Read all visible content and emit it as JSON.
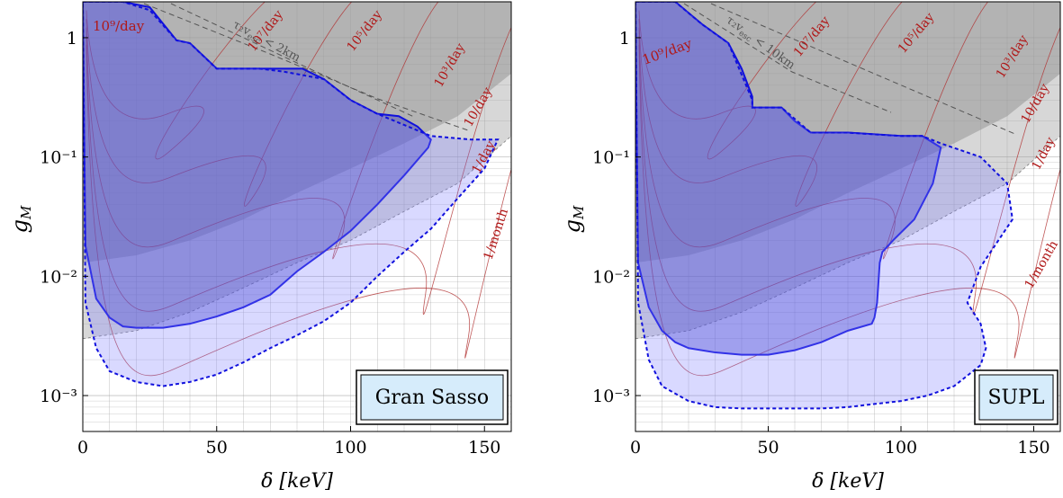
{
  "figure": {
    "panels": [
      {
        "region_label": "Gran Sasso",
        "xlabel": "δ [keV]",
        "ylabel": "g",
        "ylabel_sub": "M",
        "rate_labels": [
          "10⁹/day",
          "10⁷/day",
          "10⁵/day",
          "10³/day",
          "10/day",
          "1/day",
          "1/month"
        ],
        "escape_label_main": "τ₂v",
        "escape_label_sub": "esc",
        "escape_label_rest": " < 2km"
      },
      {
        "region_label": "SUPL",
        "xlabel": "δ [keV]",
        "ylabel": "g",
        "ylabel_sub": "M",
        "rate_labels": [
          "10⁹/day",
          "10⁷/day",
          "10⁵/day",
          "10³/day",
          "10/day",
          "1/day",
          "1/month"
        ],
        "escape_label_main": "τ₂v",
        "escape_label_sub": "esc",
        "escape_label_rest": " < 10km"
      }
    ]
  },
  "chart_data": [
    {
      "type": "area",
      "title": "Gran Sasso",
      "xlabel": "δ [keV]",
      "ylabel": "g_M",
      "xlim": [
        0,
        160
      ],
      "ylim": [
        0.0005,
        2
      ],
      "yscale": "log",
      "x_ticks": [
        0,
        50,
        100,
        150
      ],
      "x_tick_labels": [
        "0",
        "50",
        "100",
        "150"
      ],
      "y_ticks": [
        0.001,
        0.01,
        0.1,
        1
      ],
      "y_tick_labels": [
        "10⁻³",
        "10⁻²",
        "10⁻¹",
        "1"
      ],
      "grid": true,
      "colors": {
        "solid_region": "#2a2abf",
        "dashed_region": "#8080ff",
        "excluded_dark": "#888888",
        "excluded_light": "#bdbdbd",
        "rate_contours": "#b03030",
        "escape_line": "#555555"
      },
      "series": [
        {
          "style": "solid-blue",
          "x": [
            0,
            5,
            15,
            25,
            35,
            40,
            50,
            60,
            66,
            75,
            82,
            90,
            100,
            110,
            118,
            125,
            130,
            129,
            120,
            110,
            100,
            90,
            80,
            70,
            60,
            50,
            40,
            30,
            20,
            15,
            10,
            5,
            1
          ],
          "y": [
            2,
            2,
            2,
            1.8,
            0.95,
            0.9,
            0.55,
            0.55,
            0.55,
            0.55,
            0.55,
            0.45,
            0.3,
            0.23,
            0.22,
            0.18,
            0.14,
            0.12,
            0.07,
            0.04,
            0.024,
            0.016,
            0.011,
            0.007,
            0.0055,
            0.0046,
            0.004,
            0.0037,
            0.0037,
            0.0038,
            0.0045,
            0.0065,
            0.018
          ]
        },
        {
          "style": "dashed-blue",
          "x": [
            0,
            5,
            15,
            25,
            35,
            40,
            50,
            66,
            75,
            90,
            100,
            110,
            130,
            145,
            155,
            150,
            140,
            130,
            120,
            110,
            100,
            90,
            80,
            70,
            60,
            50,
            40,
            30,
            20,
            10,
            5,
            1
          ],
          "y": [
            2,
            2,
            2,
            1.7,
            0.95,
            0.9,
            0.55,
            0.55,
            0.52,
            0.45,
            0.3,
            0.23,
            0.15,
            0.14,
            0.14,
            0.08,
            0.045,
            0.025,
            0.016,
            0.01,
            0.006,
            0.0042,
            0.0032,
            0.0025,
            0.0019,
            0.0015,
            0.0013,
            0.0012,
            0.0013,
            0.0016,
            0.0025,
            0.006
          ]
        },
        {
          "style": "excluded-dark",
          "x": [
            0,
            20,
            40,
            60,
            80,
            100,
            120,
            140,
            160
          ],
          "y": [
            0.013,
            0.015,
            0.02,
            0.03,
            0.05,
            0.08,
            0.13,
            0.22,
            0.5
          ]
        },
        {
          "style": "excluded-light",
          "x": [
            0,
            20,
            40,
            60,
            80,
            100,
            120,
            140,
            160
          ],
          "y": [
            0.003,
            0.0035,
            0.005,
            0.008,
            0.013,
            0.02,
            0.035,
            0.06,
            0.15
          ]
        }
      ]
    },
    {
      "type": "area",
      "title": "SUPL",
      "xlabel": "δ [keV]",
      "ylabel": "g_M",
      "xlim": [
        0,
        160
      ],
      "ylim": [
        0.0005,
        2
      ],
      "yscale": "log",
      "x_ticks": [
        0,
        50,
        100,
        150
      ],
      "x_tick_labels": [
        "0",
        "50",
        "100",
        "150"
      ],
      "y_ticks": [
        0.001,
        0.01,
        0.1,
        1
      ],
      "y_tick_labels": [
        "10⁻³",
        "10⁻²",
        "10⁻¹",
        "1"
      ],
      "grid": true,
      "colors": {
        "solid_region": "#2a2abf",
        "dashed_region": "#8080ff",
        "excluded_dark": "#888888",
        "excluded_light": "#bdbdbd",
        "rate_contours": "#b03030",
        "escape_line": "#555555"
      },
      "series": [
        {
          "style": "solid-blue",
          "x": [
            0,
            5,
            15,
            25,
            35,
            40,
            44,
            44,
            55,
            60,
            66,
            80,
            100,
            108,
            115,
            112,
            105,
            97,
            93,
            92,
            91,
            90,
            89,
            80,
            70,
            60,
            50,
            40,
            30,
            20,
            15,
            10,
            5,
            1
          ],
          "y": [
            2,
            2,
            2,
            1.3,
            0.9,
            0.55,
            0.32,
            0.26,
            0.26,
            0.2,
            0.16,
            0.16,
            0.15,
            0.15,
            0.12,
            0.06,
            0.03,
            0.02,
            0.016,
            0.013,
            0.006,
            0.0045,
            0.004,
            0.0035,
            0.0028,
            0.0024,
            0.0022,
            0.0022,
            0.0023,
            0.0025,
            0.0028,
            0.0035,
            0.0055,
            0.013
          ]
        },
        {
          "style": "dashed-blue",
          "x": [
            0,
            5,
            15,
            25,
            35,
            44,
            44,
            55,
            66,
            80,
            100,
            108,
            115,
            130,
            140,
            142,
            130,
            125,
            130,
            132,
            130,
            120,
            110,
            100,
            90,
            80,
            70,
            60,
            50,
            40,
            30,
            20,
            10,
            5,
            1
          ],
          "y": [
            2,
            2,
            2,
            1.3,
            0.9,
            0.3,
            0.26,
            0.26,
            0.16,
            0.16,
            0.15,
            0.15,
            0.13,
            0.1,
            0.06,
            0.03,
            0.012,
            0.006,
            0.004,
            0.0025,
            0.0018,
            0.0012,
            0.001,
            0.0009,
            0.00085,
            0.0008,
            0.00078,
            0.00078,
            0.00078,
            0.00078,
            0.0008,
            0.0009,
            0.0012,
            0.002,
            0.006
          ]
        },
        {
          "style": "excluded-dark",
          "x": [
            0,
            20,
            40,
            60,
            80,
            100,
            120,
            140,
            160
          ],
          "y": [
            0.013,
            0.015,
            0.02,
            0.03,
            0.05,
            0.08,
            0.13,
            0.22,
            0.5
          ]
        },
        {
          "style": "excluded-light",
          "x": [
            0,
            20,
            40,
            60,
            80,
            100,
            120,
            140,
            160
          ],
          "y": [
            0.003,
            0.0035,
            0.005,
            0.008,
            0.013,
            0.02,
            0.035,
            0.06,
            0.15
          ]
        }
      ]
    }
  ]
}
